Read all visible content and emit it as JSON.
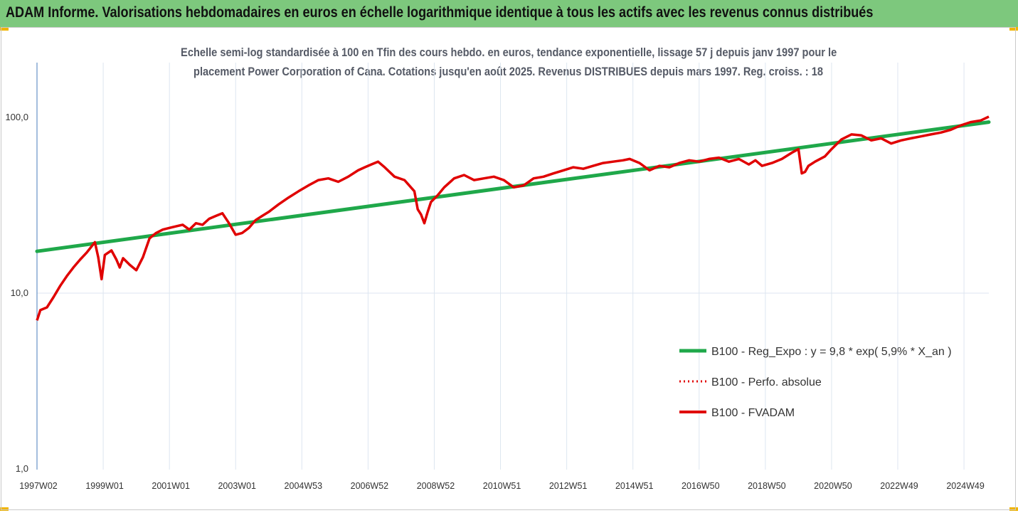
{
  "header": {
    "title": "ADAM Informe. Valorisations hebdomadaires en euros en échelle logarithmique identique à tous les actifs avec les revenus connus distribués"
  },
  "colors": {
    "banner": "#7dc87d",
    "trend": "#1fa84a",
    "series": "#e00000",
    "grid": "#dde6f0"
  },
  "chart_data": {
    "type": "line",
    "title_line1": "Echelle semi-log standardisée à 100 en Tfin des cours hebdo. en euros, tendance exponentielle, lissage 57 j depuis janv 1997 pour le",
    "title_line2": "placement Power Corporation of Cana. Cotations jusqu'en août 2025. Revenus DISTRIBUES depuis mars 1997. Reg. croiss. : 18",
    "y_scale": "log",
    "ylim": [
      1,
      200
    ],
    "y_ticks": [
      {
        "value": 100,
        "label": "100,0"
      },
      {
        "value": 10,
        "label": "10,0"
      },
      {
        "value": 1,
        "label": "1,0"
      }
    ],
    "xlim": [
      1997.0,
      2025.75
    ],
    "x_ticks": [
      {
        "value": 1997.0,
        "label": "1997W02"
      },
      {
        "value": 1999.0,
        "label": "1999W01"
      },
      {
        "value": 2001.0,
        "label": "2001W01"
      },
      {
        "value": 2003.0,
        "label": "2003W01"
      },
      {
        "value": 2005.0,
        "label": "2004W53"
      },
      {
        "value": 2007.0,
        "label": "2006W52"
      },
      {
        "value": 2009.0,
        "label": "2008W52"
      },
      {
        "value": 2011.0,
        "label": "2010W51"
      },
      {
        "value": 2013.0,
        "label": "2012W51"
      },
      {
        "value": 2015.0,
        "label": "2014W51"
      },
      {
        "value": 2017.0,
        "label": "2016W50"
      },
      {
        "value": 2019.0,
        "label": "2018W50"
      },
      {
        "value": 2021.0,
        "label": "2020W50"
      },
      {
        "value": 2023.0,
        "label": "2022W49"
      },
      {
        "value": 2025.0,
        "label": "2024W49"
      }
    ],
    "legend": [
      {
        "label": "B100 - Reg_Expo : y = 9,8 * exp( 5,9% *  X_an )",
        "style": "solid-green"
      },
      {
        "label": "B100 - Perfo. absolue",
        "style": "dotted-red"
      },
      {
        "label": "B100 - FVADAM",
        "style": "solid-red"
      }
    ],
    "legend_position": "lower-right",
    "grid": "vertical",
    "series": [
      {
        "name": "B100 - Reg_Expo : y = 9,8 * exp( 5,9% *  X_an )",
        "x": [
          1997.0,
          2025.75
        ],
        "y": [
          17.3,
          94.0
        ]
      },
      {
        "name": "B100 - FVADAM",
        "x": [
          1997.0,
          1997.1,
          1997.3,
          1997.5,
          1997.7,
          1997.9,
          1998.1,
          1998.3,
          1998.5,
          1998.75,
          1998.85,
          1998.95,
          1999.05,
          1999.25,
          1999.4,
          1999.5,
          1999.6,
          1999.8,
          2000.0,
          2000.2,
          2000.4,
          2000.6,
          2000.8,
          2001.0,
          2001.2,
          2001.4,
          2001.6,
          2001.8,
          2002.0,
          2002.2,
          2002.4,
          2002.6,
          2002.8,
          2003.0,
          2003.2,
          2003.4,
          2003.6,
          2003.8,
          2004.0,
          2004.3,
          2004.6,
          2004.9,
          2005.2,
          2005.5,
          2005.8,
          2006.1,
          2006.4,
          2006.7,
          2006.9,
          2007.1,
          2007.3,
          2007.5,
          2007.8,
          2008.1,
          2008.4,
          2008.5,
          2008.6,
          2008.7,
          2008.8,
          2008.9,
          2009.1,
          2009.3,
          2009.6,
          2009.9,
          2010.2,
          2010.5,
          2010.8,
          2011.1,
          2011.4,
          2011.7,
          2012.0,
          2012.3,
          2012.6,
          2012.9,
          2013.2,
          2013.5,
          2013.8,
          2014.1,
          2014.4,
          2014.7,
          2014.9,
          2015.2,
          2015.5,
          2015.8,
          2016.1,
          2016.4,
          2016.7,
          2017.0,
          2017.3,
          2017.6,
          2017.9,
          2018.2,
          2018.5,
          2018.7,
          2018.9,
          2019.2,
          2019.5,
          2019.8,
          2020.0,
          2020.1,
          2020.2,
          2020.3,
          2020.5,
          2020.8,
          2021.0,
          2021.3,
          2021.6,
          2021.9,
          2022.2,
          2022.5,
          2022.8,
          2023.1,
          2023.4,
          2023.7,
          2024.0,
          2024.3,
          2024.6,
          2024.9,
          2025.2,
          2025.5,
          2025.75
        ],
        "y": [
          7.0,
          8.0,
          8.3,
          9.5,
          11.0,
          12.5,
          14.0,
          15.5,
          17.0,
          19.5,
          16.0,
          12.0,
          16.5,
          17.5,
          15.5,
          14.0,
          15.8,
          14.5,
          13.5,
          16.0,
          20.5,
          22.0,
          23.0,
          23.5,
          24.0,
          24.5,
          23.0,
          25.0,
          24.5,
          26.5,
          27.5,
          28.5,
          25.0,
          21.5,
          22.0,
          23.5,
          26.0,
          27.5,
          29.0,
          32.0,
          35.0,
          38.0,
          41.0,
          44.0,
          45.0,
          43.0,
          46.0,
          50.0,
          52.0,
          54.0,
          56.0,
          52.0,
          46.0,
          44.0,
          38.0,
          30.0,
          28.0,
          25.0,
          29.0,
          33.0,
          36.0,
          40.0,
          45.0,
          47.0,
          44.0,
          45.0,
          46.0,
          44.0,
          40.0,
          41.0,
          45.0,
          46.0,
          48.0,
          50.0,
          52.0,
          51.0,
          53.0,
          55.0,
          56.0,
          57.0,
          58.0,
          55.0,
          50.0,
          53.0,
          52.0,
          55.0,
          57.0,
          56.0,
          58.0,
          59.0,
          56.0,
          58.0,
          54.0,
          57.0,
          53.0,
          55.0,
          58.0,
          63.0,
          66.0,
          48.0,
          49.0,
          53.0,
          56.0,
          60.0,
          66.0,
          75.0,
          80.0,
          79.0,
          74.0,
          76.0,
          71.0,
          74.0,
          76.0,
          78.0,
          80.0,
          82.0,
          85.0,
          90.0,
          94.0,
          96.0,
          101.0
        ]
      }
    ]
  }
}
